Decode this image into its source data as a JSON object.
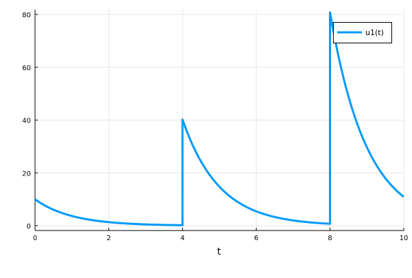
{
  "chart_data": {
    "type": "line",
    "title": "",
    "xlabel": "t",
    "ylabel": "",
    "xlim": [
      0,
      10
    ],
    "ylim": [
      -2,
      82
    ],
    "xticks": [
      0,
      2,
      4,
      6,
      8,
      10
    ],
    "yticks": [
      0,
      20,
      40,
      60,
      80
    ],
    "xtick_labels": [
      "0",
      "2",
      "4",
      "6",
      "8",
      "10"
    ],
    "ytick_labels": [
      "0",
      "20",
      "40",
      "60",
      "80"
    ],
    "grid": true,
    "legend": "top-right",
    "series": [
      {
        "name": "u1(t)",
        "color": "#009AFA",
        "x": [
          0,
          0.25,
          0.5,
          0.75,
          1,
          1.25,
          1.5,
          1.75,
          2,
          2.25,
          2.5,
          2.75,
          3,
          3.25,
          3.5,
          3.75,
          4,
          4,
          4.25,
          4.5,
          4.75,
          5,
          5.25,
          5.5,
          5.75,
          6,
          6.25,
          6.5,
          6.75,
          7,
          7.25,
          7.5,
          7.75,
          8,
          8,
          8.25,
          8.5,
          8.75,
          9,
          9.25,
          9.5,
          9.75,
          10
        ],
        "y": [
          10,
          7.788,
          6.065,
          4.724,
          3.679,
          2.865,
          2.231,
          1.738,
          1.353,
          1.054,
          0.821,
          0.639,
          0.498,
          0.388,
          0.302,
          0.235,
          0.183,
          40.18,
          31.29,
          24.37,
          18.98,
          14.78,
          11.51,
          8.97,
          6.98,
          5.44,
          4.24,
          3.3,
          2.57,
          2.0,
          1.56,
          1.21,
          0.94,
          0.736,
          80.74,
          62.88,
          48.97,
          38.14,
          29.7,
          23.13,
          18.01,
          14.03,
          10.93
        ]
      }
    ]
  }
}
